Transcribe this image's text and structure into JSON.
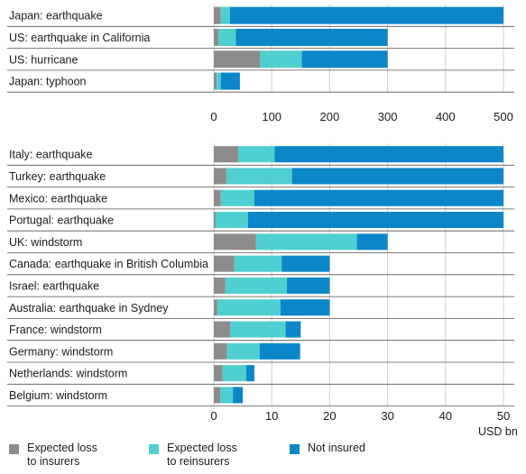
{
  "colors": {
    "insurers": "#8c8c8c",
    "reinsurers": "#4fcfcf",
    "not_insured": "#0a86c9",
    "grid": "#cfcfcf",
    "separator": "#555555",
    "text": "#1a1a1a"
  },
  "legend": {
    "insurers": "Expected loss\nto insurers",
    "reinsurers": "Expected loss\nto reinsurers",
    "not_insured": "Not insured"
  },
  "unit_label": "USD bn",
  "chart_data": [
    {
      "type": "bar",
      "orientation": "horizontal",
      "stacked": true,
      "categories": [
        "Japan: earthquake",
        "US: earthquake in California",
        "US: hurricane",
        "Japan: typhoon"
      ],
      "series": [
        {
          "name": "Expected loss to insurers",
          "color": "#8c8c8c",
          "values": [
            12,
            8,
            80,
            5
          ]
        },
        {
          "name": "Expected loss to reinsurers",
          "color": "#4fcfcf",
          "values": [
            16,
            30,
            72,
            7
          ]
        },
        {
          "name": "Not insured",
          "color": "#0a86c9",
          "values": [
            472,
            262,
            148,
            33
          ]
        }
      ],
      "xlim": [
        0,
        500
      ],
      "xticks": [
        0,
        100,
        200,
        300,
        400,
        500
      ],
      "grid": true
    },
    {
      "type": "bar",
      "orientation": "horizontal",
      "stacked": true,
      "categories": [
        "Italy: earthquake",
        "Turkey: earthquake",
        "Mexico: earthquake",
        "Portugal: earthquake",
        "UK: windstorm",
        "Canada: earthquake in British Columbia",
        "Israel: earthquake",
        "Australia: earthquake in Sydney",
        "France: windstorm",
        "Germany: windstorm",
        "Netherlands: windstorm",
        "Belgium: windstorm"
      ],
      "series": [
        {
          "name": "Expected loss to insurers",
          "color": "#8c8c8c",
          "values": [
            4.2,
            2.2,
            1.2,
            0.3,
            7.3,
            3.5,
            2.0,
            0.6,
            2.8,
            2.3,
            1.5,
            1.1
          ]
        },
        {
          "name": "Expected loss to reinsurers",
          "color": "#4fcfcf",
          "values": [
            6.3,
            11.3,
            5.8,
            5.6,
            17.4,
            8.2,
            10.6,
            10.9,
            9.6,
            5.6,
            4.1,
            2.2
          ]
        },
        {
          "name": "Not insured",
          "color": "#0a86c9",
          "values": [
            39.5,
            36.5,
            43.0,
            44.1,
            5.3,
            8.3,
            7.4,
            8.5,
            2.6,
            7.0,
            1.4,
            1.7
          ]
        }
      ],
      "xlim": [
        0,
        50
      ],
      "xticks": [
        0,
        10,
        20,
        30,
        40,
        50
      ],
      "xlabel": "USD bn",
      "grid": true
    }
  ]
}
